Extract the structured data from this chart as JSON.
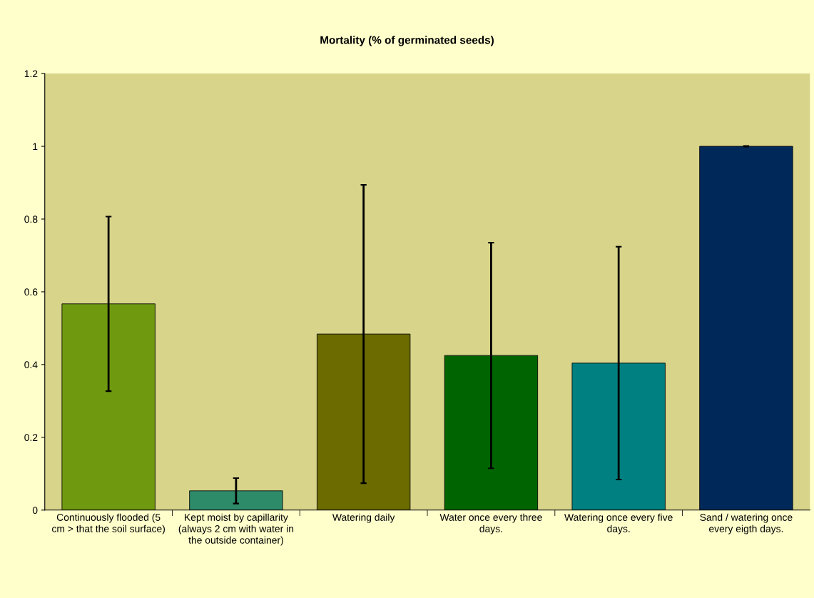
{
  "chart_data": {
    "type": "bar",
    "title": "Mortality (% of germinated seeds)",
    "categories": [
      "Continuously flooded (5 cm > that the soil surface)",
      "Kept moist by capillarity (always 2 cm with water in the outside container)",
      "Watering daily",
      "Water once every three days.",
      "Watering once every five days.",
      "Sand / watering once every eigth days."
    ],
    "values": [
      0.567,
      0.053,
      0.484,
      0.425,
      0.404,
      1.0
    ],
    "errors": [
      0.24,
      0.035,
      0.41,
      0.31,
      0.32,
      0.001
    ],
    "colors": [
      "#6f9a10",
      "#2e8b6a",
      "#6b6b00",
      "#006400",
      "#008080",
      "#00295a"
    ],
    "ylim": [
      0,
      1.2
    ],
    "yticks": [
      0,
      0.2,
      0.4,
      0.6,
      0.8,
      1,
      1.2
    ],
    "grid": false
  }
}
